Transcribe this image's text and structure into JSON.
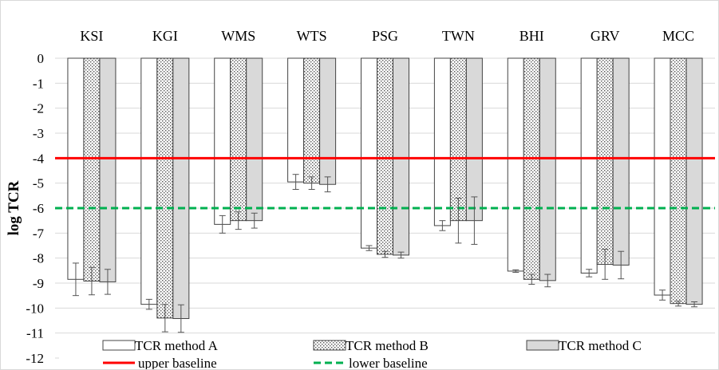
{
  "chart_data": {
    "type": "bar",
    "categories": [
      "KSI",
      "KGI",
      "WMS",
      "WTS",
      "PSG",
      "TWN",
      "BHI",
      "GRV",
      "MCC"
    ],
    "ylabel": "log  TCR",
    "ylim": [
      -12,
      0
    ],
    "yticks": [
      "0",
      "-1",
      "-2",
      "-3",
      "-4",
      "-5",
      "-6",
      "-7",
      "-8",
      "-9",
      "-10",
      "-11",
      "-12"
    ],
    "grid": true,
    "series": [
      {
        "name": "TCR method A",
        "pattern": "blank",
        "values": [
          -8.85,
          -9.85,
          -6.65,
          -4.95,
          -7.6,
          -6.7,
          -8.52,
          -8.6,
          -9.48
        ],
        "errors": [
          0.65,
          0.2,
          0.35,
          0.3,
          0.1,
          0.2,
          0.05,
          0.15,
          0.2
        ]
      },
      {
        "name": "TCR method B",
        "pattern": "dotted",
        "values": [
          -8.92,
          -10.4,
          -6.5,
          -5.0,
          -7.85,
          -6.5,
          -8.85,
          -8.25,
          -9.82
        ],
        "errors": [
          0.55,
          0.55,
          0.35,
          0.25,
          0.12,
          0.9,
          0.2,
          0.6,
          0.1
        ]
      },
      {
        "name": "TCR method C",
        "pattern": "gray",
        "values": [
          -8.95,
          -10.42,
          -6.5,
          -5.05,
          -7.88,
          -6.5,
          -8.9,
          -8.28,
          -9.85
        ],
        "errors": [
          0.5,
          0.55,
          0.3,
          0.3,
          0.12,
          0.95,
          0.25,
          0.55,
          0.1
        ]
      }
    ],
    "reference_lines": [
      {
        "name": "upper baseline",
        "y": -4,
        "color": "#ff0000",
        "style": "solid"
      },
      {
        "name": "lower baseline",
        "y": -6,
        "color": "#00b050",
        "style": "dashed"
      }
    ],
    "legend": {
      "placement": "bottom",
      "items": [
        "TCR method A",
        "TCR method B",
        "TCR method C",
        "upper baseline",
        "lower baseline"
      ]
    }
  }
}
